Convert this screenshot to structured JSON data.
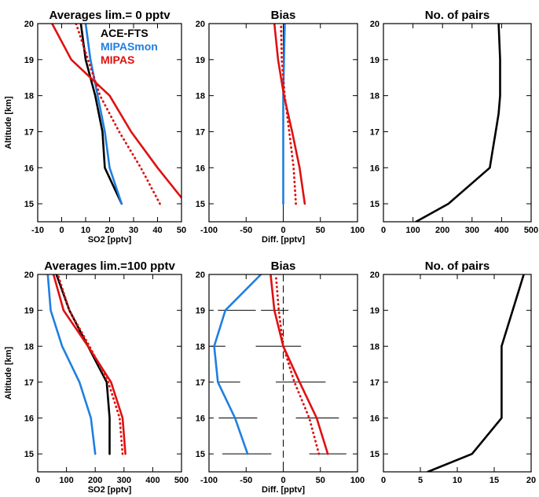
{
  "colors": {
    "ace": "#000000",
    "mipasmon": "#1f7fe0",
    "mipas": "#e01010"
  },
  "chart_data": [
    {
      "id": "avg0",
      "type": "line",
      "title": "Averages lim.=  0 pptv",
      "xlabel": "SO2 [pptv]",
      "ylabel": "Altitude [km]",
      "xlim": [
        -10,
        50
      ],
      "ylim": [
        14.5,
        20
      ],
      "xticks": [
        -10,
        0,
        10,
        20,
        30,
        40,
        50
      ],
      "yticks": [
        15,
        16,
        17,
        18,
        19,
        20
      ],
      "legend": {
        "placement": "top-right",
        "entries": [
          "ACE-FTS",
          "MIPASmon",
          "MIPAS"
        ]
      },
      "series": [
        {
          "name": "ACE-FTS",
          "color": "ace",
          "style": "solid",
          "x": [
            25,
            18,
            17,
            14,
            10,
            8
          ],
          "y": [
            15,
            16,
            17,
            18,
            19,
            20
          ]
        },
        {
          "name": "MIPASmon",
          "color": "mipasmon",
          "style": "solid",
          "x": [
            25,
            20,
            18,
            15,
            12,
            10
          ],
          "y": [
            15,
            16,
            17,
            18,
            19,
            20
          ]
        },
        {
          "name": "MIPAS",
          "color": "mipas",
          "style": "solid",
          "x": [
            52,
            40,
            29,
            20,
            4,
            -4
          ],
          "y": [
            15,
            16,
            17,
            18,
            19,
            20
          ]
        },
        {
          "name": "MIPAS",
          "color": "mipas",
          "style": "dotted",
          "x": [
            41,
            33,
            24,
            16,
            11,
            6
          ],
          "y": [
            15,
            16,
            17,
            18,
            19,
            20
          ]
        }
      ]
    },
    {
      "id": "bias0",
      "type": "line",
      "title": "Bias",
      "xlabel": "Diff. [pptv]",
      "ylabel": "",
      "xlim": [
        -100,
        100
      ],
      "ylim": [
        14.5,
        20
      ],
      "xticks": [
        -100,
        -50,
        0,
        50,
        100
      ],
      "yticks": [
        15,
        16,
        17,
        18,
        19,
        20
      ],
      "zero_line": true,
      "series": [
        {
          "name": "MIPASmon",
          "color": "mipasmon",
          "style": "solid",
          "x": [
            0,
            0,
            0,
            0,
            1,
            2
          ],
          "y": [
            15,
            16,
            17,
            18,
            19,
            20
          ]
        },
        {
          "name": "MIPAS",
          "color": "mipas",
          "style": "solid",
          "x": [
            29,
            22,
            12,
            1,
            -7,
            -12
          ],
          "y": [
            15,
            16,
            17,
            18,
            19,
            20
          ]
        },
        {
          "name": "MIPAS",
          "color": "mipas",
          "style": "dotted",
          "x": [
            17,
            14,
            8,
            2,
            -2,
            -3
          ],
          "y": [
            15,
            16,
            17,
            18,
            19,
            20
          ]
        }
      ]
    },
    {
      "id": "pairs0",
      "type": "line",
      "title": "No. of pairs",
      "xlabel": "",
      "ylabel": "",
      "xlim": [
        0,
        500
      ],
      "ylim": [
        14.5,
        20
      ],
      "xticks": [
        0,
        100,
        200,
        300,
        400,
        500
      ],
      "yticks": [
        15,
        16,
        17,
        18,
        19,
        20
      ],
      "series": [
        {
          "color": "ace",
          "style": "solid",
          "x": [
            110,
            220,
            360,
            370,
            380,
            390,
            395,
            395,
            390
          ],
          "y": [
            14.5,
            15,
            16,
            16.5,
            17,
            17.5,
            18,
            19,
            20
          ]
        }
      ]
    },
    {
      "id": "avg100",
      "type": "line",
      "title": "Averages lim.=100 pptv",
      "xlabel": "SO2 [pptv]",
      "ylabel": "Altitude [km]",
      "xlim": [
        0,
        500
      ],
      "ylim": [
        14.5,
        20
      ],
      "xticks": [
        0,
        100,
        200,
        300,
        400,
        500
      ],
      "yticks": [
        15,
        16,
        17,
        18,
        19,
        20
      ],
      "series": [
        {
          "name": "ACE-FTS",
          "color": "ace",
          "style": "solid",
          "x": [
            250,
            250,
            240,
            175,
            110,
            65
          ],
          "y": [
            15,
            16,
            17,
            18,
            19,
            20
          ]
        },
        {
          "name": "MIPASmon",
          "color": "mipasmon",
          "style": "solid",
          "x": [
            200,
            185,
            145,
            85,
            45,
            35
          ],
          "y": [
            15,
            16,
            17,
            18,
            19,
            20
          ]
        },
        {
          "name": "MIPAS",
          "color": "mipas",
          "style": "solid",
          "x": [
            305,
            295,
            255,
            175,
            90,
            55
          ],
          "y": [
            15,
            16,
            17,
            18,
            19,
            20
          ]
        },
        {
          "name": "MIPAS",
          "color": "mipas",
          "style": "dotted",
          "x": [
            295,
            285,
            245,
            180,
            110,
            70
          ],
          "y": [
            15,
            16,
            17,
            18,
            19,
            20
          ]
        }
      ]
    },
    {
      "id": "bias100",
      "type": "line",
      "title": "Bias",
      "xlabel": "Diff. [pptv]",
      "ylabel": "",
      "xlim": [
        -100,
        100
      ],
      "ylim": [
        14.5,
        20
      ],
      "xticks": [
        -100,
        -50,
        0,
        50,
        100
      ],
      "yticks": [
        15,
        16,
        17,
        18,
        19,
        20
      ],
      "zero_line": true,
      "zero_line_style": "dashed",
      "errorbars": [
        {
          "y": 15,
          "x1": -82,
          "x2": -16
        },
        {
          "y": 15,
          "x1": 35,
          "x2": 85
        },
        {
          "y": 16,
          "x1": -87,
          "x2": -35
        },
        {
          "y": 16,
          "x1": 17,
          "x2": 75
        },
        {
          "y": 17,
          "x1": -88,
          "x2": -58
        },
        {
          "y": 17,
          "x1": -10,
          "x2": 57
        },
        {
          "y": 18,
          "x1": -98,
          "x2": -78
        },
        {
          "y": 18,
          "x1": -37,
          "x2": 24
        },
        {
          "y": 19,
          "x1": -88,
          "x2": -37
        },
        {
          "y": 19,
          "x1": -30,
          "x2": 7
        }
      ],
      "series": [
        {
          "name": "MIPASmon",
          "color": "mipasmon",
          "style": "solid",
          "x": [
            -48,
            -65,
            -88,
            -93,
            -78,
            -30
          ],
          "y": [
            15,
            16,
            17,
            18,
            19,
            20
          ]
        },
        {
          "name": "MIPAS",
          "color": "mipas",
          "style": "solid",
          "x": [
            60,
            45,
            22,
            0,
            -12,
            -17
          ],
          "y": [
            15,
            16,
            17,
            18,
            19,
            20
          ]
        },
        {
          "name": "MIPAS",
          "color": "mipas",
          "style": "dotted",
          "x": [
            48,
            35,
            15,
            0,
            -6,
            -10
          ],
          "y": [
            15,
            16,
            17,
            18,
            19,
            20
          ]
        }
      ]
    },
    {
      "id": "pairs100",
      "type": "line",
      "title": "No. of pairs",
      "xlabel": "",
      "ylabel": "",
      "xlim": [
        0,
        20
      ],
      "ylim": [
        14.5,
        20
      ],
      "xticks": [
        0,
        5,
        10,
        15,
        20
      ],
      "yticks": [
        15,
        16,
        17,
        18,
        19,
        20
      ],
      "series": [
        {
          "color": "ace",
          "style": "solid",
          "x": [
            6,
            12,
            16,
            16,
            16,
            17.5,
            19
          ],
          "y": [
            14.5,
            15,
            16,
            17,
            18,
            19,
            20
          ]
        }
      ]
    }
  ]
}
